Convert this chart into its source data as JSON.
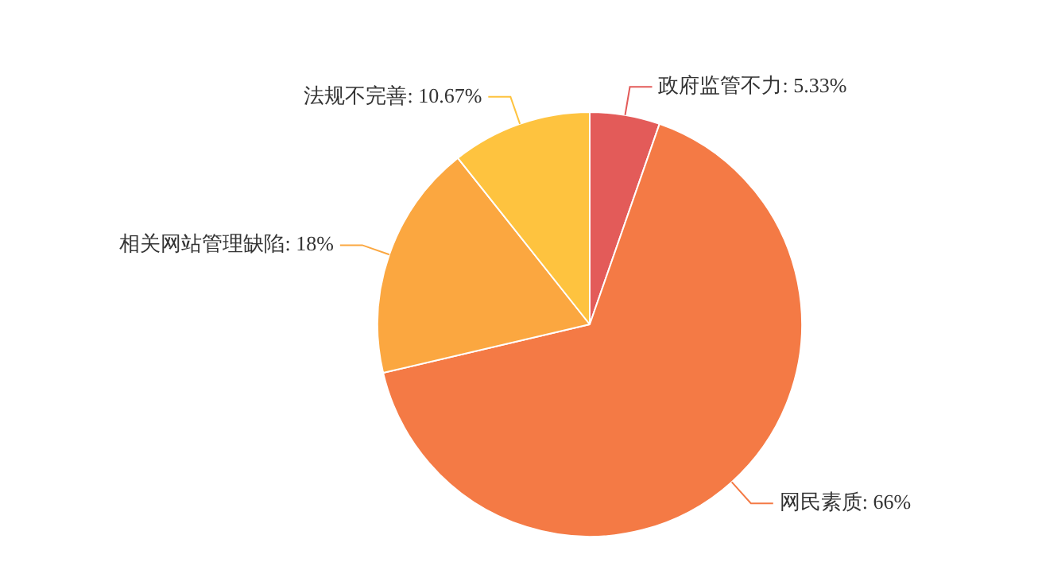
{
  "chart_data": {
    "type": "pie",
    "categories": [
      "政府监管不力",
      "网民素质",
      "相关网站管理缺陷",
      "法规不完善"
    ],
    "values": [
      5.33,
      66,
      18,
      10.67
    ],
    "colors": [
      "#e35b59",
      "#f47a45",
      "#fba740",
      "#fec33f"
    ],
    "value_labels": [
      "5.33%",
      "66%",
      "18%",
      "10.67%"
    ],
    "legend": false
  }
}
